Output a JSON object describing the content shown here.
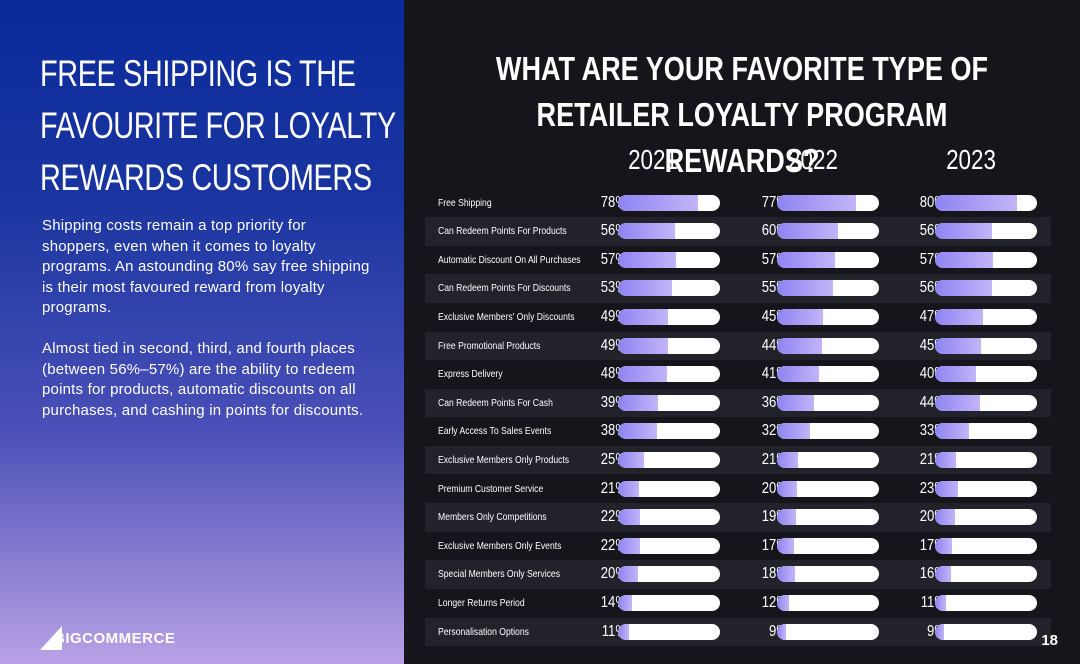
{
  "left_panel": {
    "headline_lines": [
      "FREE SHIPPING IS THE",
      "FAVOURITE FOR LOYALTY",
      "REWARDS CUSTOMERS"
    ],
    "paragraph_1": "Shipping costs remain a top priority for shoppers, even when it comes to loyalty programs. An astounding 80% say free shipping is their most favoured reward from loyalty programs.",
    "paragraph_2": "Almost tied in second, third, and fourth places (between 56%–57%) are the ability to redeem points for products, automatic discounts on all purchases, and cashing in points for discounts.",
    "logo_text": "BIGCOMMERCE"
  },
  "page_number": "18",
  "colors": {
    "left_gradient_top": "#0a2a9a",
    "left_gradient_bottom": "#b9a2e6",
    "right_background": "#15151b",
    "bar_fill": "#a79cf5",
    "bar_track": "#ffffff"
  },
  "chart_data": {
    "type": "bar",
    "orientation": "horizontal",
    "title_lines": [
      "WHAT ARE YOUR FAVORITE TYPE OF",
      "RETAILER LOYALTY PROGRAM REWARDS?"
    ],
    "categories": [
      "Free Shipping",
      "Can Redeem Points For Products",
      "Automatic Discount On All Purchases",
      "Can Redeem Points For Discounts",
      "Exclusive Members' Only Discounts",
      "Free Promotional Products",
      "Express Delivery",
      "Can Redeem Points For Cash",
      "Early Access To Sales Events",
      "Exclusive Members Only Products",
      "Premium Customer Service",
      "Members Only Competitions",
      "Exclusive Members Only Events",
      "Special Members Only Services",
      "Longer Returns Period",
      "Personalisation Options"
    ],
    "series": [
      {
        "name": "2021",
        "values": [
          78,
          56,
          57,
          53,
          49,
          49,
          48,
          39,
          38,
          25,
          21,
          22,
          22,
          20,
          14,
          11
        ]
      },
      {
        "name": "2022",
        "values": [
          77,
          60,
          57,
          55,
          45,
          44,
          41,
          36,
          32,
          21,
          20,
          19,
          17,
          18,
          12,
          9
        ]
      },
      {
        "name": "2023",
        "values": [
          80,
          56,
          57,
          56,
          47,
          45,
          40,
          44,
          33,
          21,
          23,
          20,
          17,
          16,
          11,
          9
        ]
      }
    ],
    "unit": "%",
    "xlim": [
      0,
      100
    ],
    "legend": "none",
    "grid": false
  }
}
